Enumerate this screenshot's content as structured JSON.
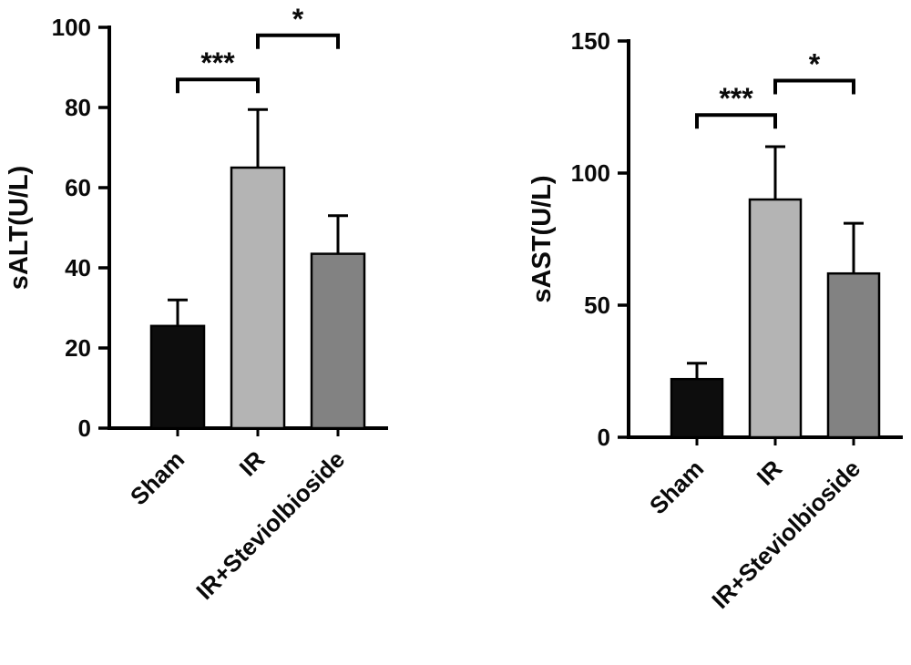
{
  "figure": {
    "background": "#ffffff",
    "axis_color": "#000000",
    "error_bar_color": "#000000"
  },
  "chart_data": [
    {
      "id": "sALT",
      "type": "bar",
      "title": "",
      "xlabel": "",
      "ylabel": "sALT(U/L)",
      "categories": [
        "Sham",
        "IR",
        "IR+Steviolbioside"
      ],
      "values": [
        25.5,
        65,
        43.5
      ],
      "errors_upper": [
        6.5,
        14.5,
        9.5
      ],
      "ylim": [
        0,
        100
      ],
      "yticks": [
        0,
        20,
        40,
        60,
        80,
        100
      ],
      "grid": false,
      "legend": null,
      "bar_colors": [
        "#0d0d0d",
        "#b4b4b4",
        "#828282"
      ],
      "bar_edge_color": "#000000",
      "annotations": [
        {
          "type": "significance-bracket",
          "from": "Sham",
          "to": "IR",
          "label": "***",
          "y": 87
        },
        {
          "type": "significance-bracket",
          "from": "IR",
          "to": "IR+Steviolbioside",
          "label": "*",
          "y": 98
        }
      ]
    },
    {
      "id": "sAST",
      "type": "bar",
      "title": "",
      "xlabel": "",
      "ylabel": "sAST(U/L)",
      "categories": [
        "Sham",
        "IR",
        "IR+Steviolbioside"
      ],
      "values": [
        22,
        90,
        62
      ],
      "errors_upper": [
        6,
        20,
        19
      ],
      "ylim": [
        0,
        150
      ],
      "yticks": [
        0,
        50,
        100,
        150
      ],
      "grid": false,
      "legend": null,
      "bar_colors": [
        "#0d0d0d",
        "#b4b4b4",
        "#828282"
      ],
      "bar_edge_color": "#000000",
      "annotations": [
        {
          "type": "significance-bracket",
          "from": "Sham",
          "to": "IR",
          "label": "***",
          "y": 122
        },
        {
          "type": "significance-bracket",
          "from": "IR",
          "to": "IR+Steviolbioside",
          "label": "*",
          "y": 135
        }
      ]
    }
  ]
}
